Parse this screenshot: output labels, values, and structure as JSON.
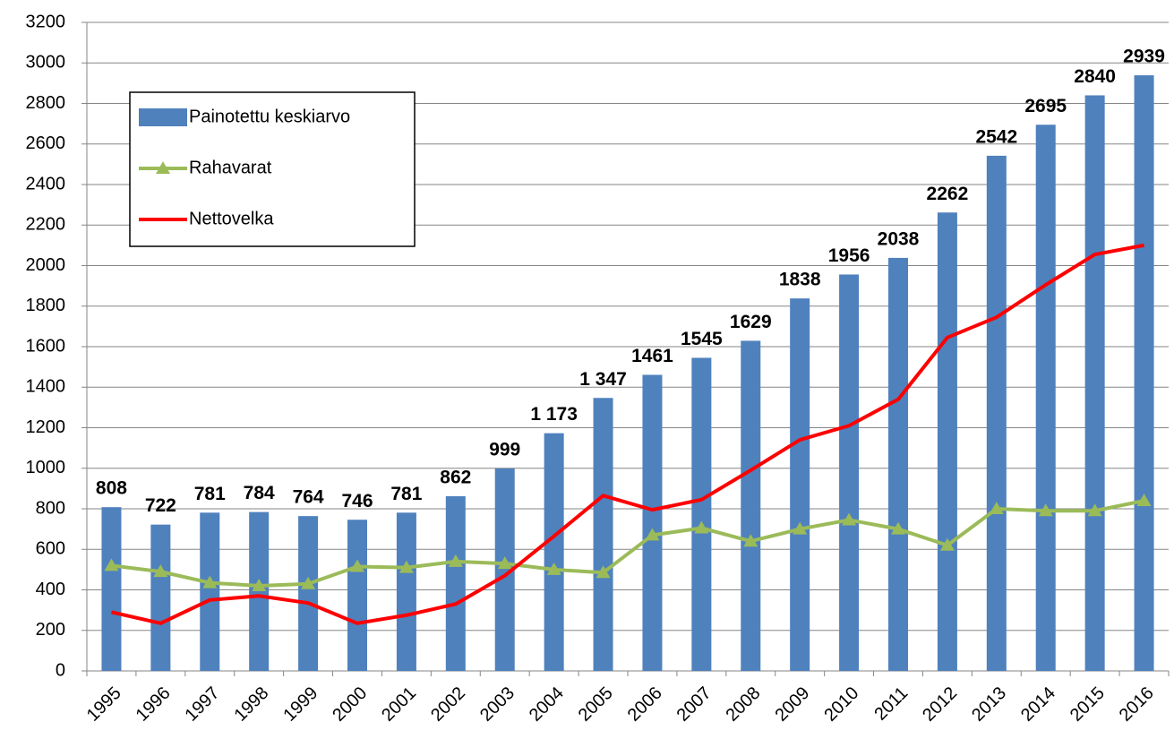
{
  "chart_data": {
    "type": "bar",
    "categories": [
      "1995",
      "1996",
      "1997",
      "1998",
      "1999",
      "2000",
      "2001",
      "2002",
      "2003",
      "2004",
      "2005",
      "2006",
      "2007",
      "2008",
      "2009",
      "2010",
      "2011",
      "2012",
      "2013",
      "2014",
      "2015",
      "2016"
    ],
    "series": [
      {
        "name": "Painotettu keskiarvo",
        "type": "bar",
        "color": "#4f81bd",
        "values": [
          808,
          722,
          781,
          784,
          764,
          746,
          781,
          862,
          999,
          1173,
          1347,
          1461,
          1545,
          1629,
          1838,
          1956,
          2038,
          2262,
          2542,
          2695,
          2840,
          2939
        ],
        "value_labels": [
          "808",
          "722",
          "781",
          "784",
          "764",
          "746",
          "781",
          "862",
          "999",
          "1 173",
          "1 347",
          "1461",
          "1545",
          "1629",
          "1838",
          "1956",
          "2038",
          "2262",
          "2542",
          "2695",
          "2840",
          "2939"
        ]
      },
      {
        "name": "Rahavarat",
        "type": "line",
        "marker": "triangle",
        "color": "#9bbb59",
        "values": [
          520,
          490,
          435,
          420,
          430,
          515,
          510,
          540,
          530,
          500,
          485,
          670,
          705,
          640,
          700,
          745,
          700,
          620,
          800,
          790,
          790,
          840
        ]
      },
      {
        "name": "Nettovelka",
        "type": "line",
        "color": "#ff0000",
        "values": [
          290,
          235,
          350,
          370,
          335,
          235,
          275,
          330,
          470,
          665,
          865,
          795,
          845,
          990,
          1140,
          1210,
          1340,
          1645,
          1745,
          1905,
          2055,
          2100
        ]
      }
    ],
    "ylim": [
      0,
      3200
    ],
    "yticks": [
      0,
      200,
      400,
      600,
      800,
      1000,
      1200,
      1400,
      1600,
      1800,
      2000,
      2200,
      2400,
      2600,
      2800,
      3000,
      3200
    ],
    "grid": true,
    "legend": "top-left"
  }
}
